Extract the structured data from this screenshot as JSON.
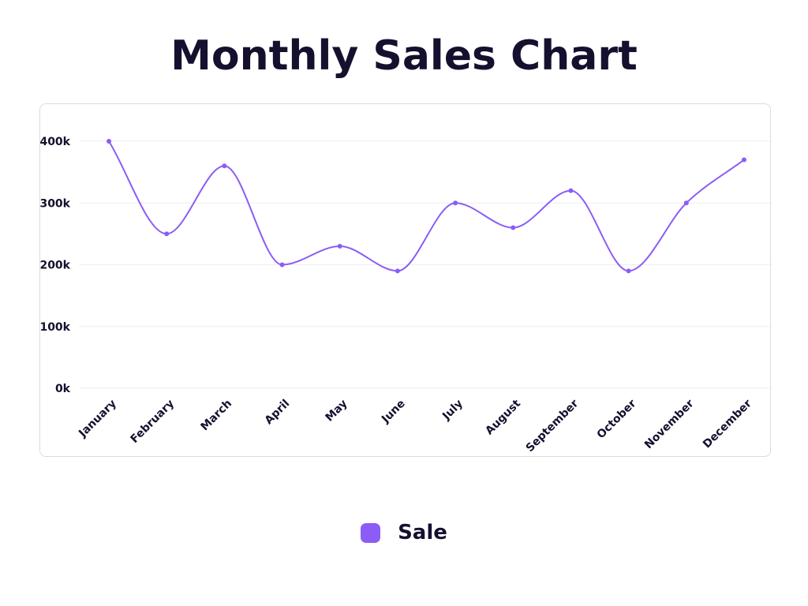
{
  "chart_data": {
    "type": "line",
    "title": "Monthly Sales Chart",
    "categories": [
      "January",
      "February",
      "March",
      "April",
      "May",
      "June",
      "July",
      "August",
      "September",
      "October",
      "November",
      "December"
    ],
    "series": [
      {
        "name": "Sale",
        "values": [
          400000,
          250000,
          360000,
          200000,
          230000,
          190000,
          300000,
          260000,
          320000,
          190000,
          300000,
          370000
        ]
      }
    ],
    "yticks": [
      {
        "value": 0,
        "label": "0k"
      },
      {
        "value": 100000,
        "label": "100k"
      },
      {
        "value": 200000,
        "label": "200k"
      },
      {
        "value": 300000,
        "label": "300k"
      },
      {
        "value": 400000,
        "label": "400k"
      }
    ],
    "ylim": [
      0,
      400000
    ],
    "xlabel": "",
    "ylabel": "",
    "grid": true,
    "curve": "smooth",
    "legend": "bottom-center",
    "colors": {
      "line": "#8b5cf6",
      "grid": "#eeeeee",
      "text": "#14102e"
    }
  }
}
